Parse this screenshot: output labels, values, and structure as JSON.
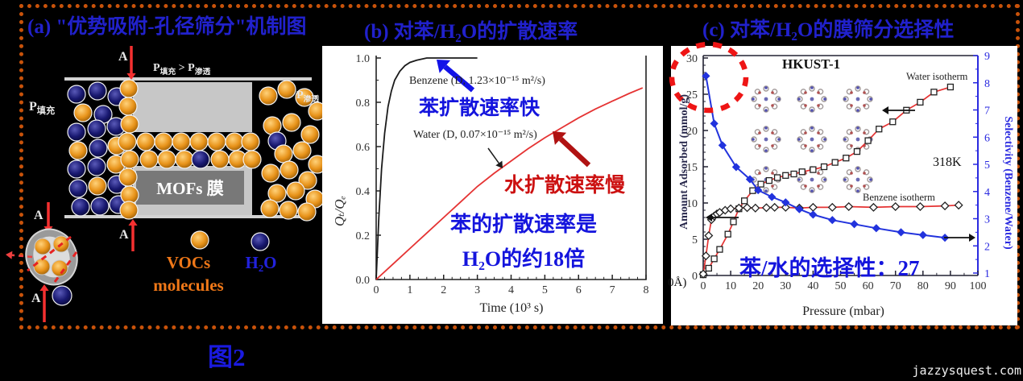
{
  "page": {
    "background": "#000000",
    "border_color": "#c8520a",
    "figure_label": "图2",
    "watermark": "jazzysquest.com"
  },
  "panel_a": {
    "title": "(a) \"优势吸附-孔径筛分\"机制图",
    "labels": {
      "p_feed_base": "P",
      "p_feed_sub": "填充",
      "p_compare_base1": "P",
      "p_compare_sub1": "填充",
      "p_compare_gt": " > ",
      "p_compare_base2": "P",
      "p_compare_sub2": "渗透",
      "p_perm_base": "P",
      "p_perm_sub": "渗透",
      "membrane_label": "MOFs 膜",
      "section_top": "A",
      "section_bottom": "A",
      "section_inset_top": "A",
      "section_inset_bottom": "A"
    },
    "legend": {
      "vocs_line1": "VOCs",
      "vocs_line2": "molecules",
      "water_label": "H₂O",
      "vocs_color": "#f07818",
      "water_color": "#2222dd"
    },
    "molecule_colors": {
      "vocs": "#e8931a",
      "water": "#181870"
    },
    "molecules": [
      [
        95,
        117,
        "n"
      ],
      [
        121,
        113,
        "n"
      ],
      [
        145,
        120,
        "n"
      ],
      [
        103,
        140,
        "o"
      ],
      [
        128,
        142,
        "n"
      ],
      [
        95,
        164,
        "n"
      ],
      [
        120,
        160,
        "n"
      ],
      [
        144,
        157,
        "n"
      ],
      [
        97,
        187,
        "o"
      ],
      [
        122,
        184,
        "n"
      ],
      [
        145,
        181,
        "o"
      ],
      [
        95,
        210,
        "n"
      ],
      [
        120,
        207,
        "n"
      ],
      [
        144,
        204,
        "o"
      ],
      [
        97,
        234,
        "n"
      ],
      [
        121,
        231,
        "o"
      ],
      [
        145,
        229,
        "n"
      ],
      [
        100,
        257,
        "n"
      ],
      [
        124,
        256,
        "n"
      ],
      [
        147,
        254,
        "n"
      ],
      [
        160,
        110,
        "o"
      ],
      [
        159,
        132,
        "o"
      ],
      [
        161,
        154,
        "o"
      ],
      [
        158,
        176,
        "o"
      ],
      [
        161,
        198,
        "o"
      ],
      [
        159,
        220,
        "o"
      ],
      [
        161,
        242,
        "o"
      ],
      [
        160,
        261,
        "o"
      ],
      [
        181,
        176,
        "o"
      ],
      [
        203,
        176,
        "o"
      ],
      [
        225,
        176,
        "o"
      ],
      [
        247,
        176,
        "o"
      ],
      [
        269,
        176,
        "o"
      ],
      [
        291,
        176,
        "o"
      ],
      [
        311,
        176,
        "o"
      ],
      [
        185,
        198,
        "o"
      ],
      [
        207,
        198,
        "o"
      ],
      [
        229,
        198,
        "o"
      ],
      [
        249,
        198,
        "n"
      ],
      [
        273,
        198,
        "o"
      ],
      [
        295,
        198,
        "o"
      ],
      [
        313,
        198,
        "o"
      ],
      [
        333,
        119,
        "o"
      ],
      [
        356,
        111,
        "o"
      ],
      [
        378,
        121,
        "o"
      ],
      [
        394,
        138,
        "o"
      ],
      [
        338,
        156,
        "o"
      ],
      [
        362,
        152,
        "o"
      ],
      [
        385,
        167,
        "o"
      ],
      [
        344,
        175,
        "n"
      ],
      [
        352,
        191,
        "o"
      ],
      [
        375,
        187,
        "o"
      ],
      [
        394,
        204,
        "o"
      ],
      [
        336,
        215,
        "o"
      ],
      [
        359,
        211,
        "o"
      ],
      [
        382,
        224,
        "o"
      ],
      [
        344,
        240,
        "o"
      ],
      [
        367,
        237,
        "o"
      ],
      [
        391,
        247,
        "o"
      ],
      [
        335,
        259,
        "o"
      ],
      [
        358,
        261,
        "o"
      ],
      [
        381,
        263,
        "o"
      ]
    ]
  },
  "panel_b_title": "(b) 对苯/H₂O的扩散速率",
  "panel_c_title": "(c) 对苯/H₂O的膜筛分选择性",
  "chart_data": [
    {
      "id": "benzene-water-diffusion",
      "type": "line",
      "xlabel": "Time (10³ s)",
      "ylabel": "Qₜ/Qₑ",
      "xlim": [
        0,
        8
      ],
      "ylim": [
        0,
        1.05
      ],
      "xticks": [
        "0",
        "1",
        "2",
        "3",
        "4",
        "5",
        "6",
        "7",
        "8"
      ],
      "yticks": [
        "0.0",
        "0.2",
        "0.4",
        "0.6",
        "0.8",
        "1.0"
      ],
      "grid": false,
      "legend_position": "none",
      "series": [
        {
          "name": "Benzene",
          "color": "#1b1b1b",
          "x": [
            0,
            0.08,
            0.16,
            0.25,
            0.35,
            0.45,
            0.55,
            0.7,
            0.85,
            1.0,
            1.2,
            1.5,
            1.8,
            2.2,
            2.6,
            3.0
          ],
          "y": [
            0,
            0.28,
            0.5,
            0.66,
            0.78,
            0.85,
            0.9,
            0.94,
            0.965,
            0.98,
            0.99,
            1.0,
            1.0,
            1.0,
            1.0,
            1.0
          ]
        },
        {
          "name": "Water",
          "color": "#e53333",
          "x": [
            0,
            0.5,
            1,
            1.5,
            2,
            2.5,
            3,
            3.5,
            4,
            4.5,
            5,
            5.5,
            6,
            6.5,
            7,
            7.5,
            7.9
          ],
          "y": [
            0,
            0.07,
            0.14,
            0.21,
            0.28,
            0.35,
            0.42,
            0.48,
            0.535,
            0.59,
            0.64,
            0.685,
            0.73,
            0.77,
            0.805,
            0.84,
            0.865
          ]
        }
      ],
      "annotations": {
        "benzene_label": "Benzene (D, 1.23×10⁻¹⁵ m²/s)",
        "benzene_fast": "苯扩散速率快",
        "water_label": "Water (D, 0.07×10⁻¹⁵ m²/s)",
        "water_slow": "水扩散速率慢",
        "ratio_line1": "苯的扩散速率是",
        "ratio_line2": "H₂O的约18倍"
      }
    },
    {
      "id": "hkust1-isotherms-selectivity",
      "type": "line",
      "xlabel": "Pressure (mbar)",
      "ylabel_left": "Amount Adsorbed (mmol/g)",
      "ylabel_right": "Selectivity (Benzene/Water)",
      "xlim": [
        0,
        100
      ],
      "ylim_left": [
        0,
        30
      ],
      "ylim_right": [
        1,
        9
      ],
      "xticks": [
        "0",
        "10",
        "20",
        "30",
        "40",
        "50",
        "60",
        "70",
        "80",
        "90",
        "100"
      ],
      "yticks_left": [
        "0",
        "5",
        "10",
        "15",
        "20",
        "25",
        "30"
      ],
      "yticks_right": [
        "1",
        "2",
        "3",
        "4",
        "5",
        "6",
        "7",
        "8",
        "9"
      ],
      "grid": false,
      "series": [
        {
          "name": "Water isotherm",
          "axis": "left",
          "color": "#e53333",
          "marker": "square-open",
          "x": [
            0,
            2,
            4,
            6,
            9,
            11,
            13,
            15,
            18,
            21,
            24,
            27,
            30,
            33,
            36,
            40,
            44,
            48,
            52,
            56,
            60,
            64,
            69,
            74,
            79,
            84,
            90
          ],
          "y": [
            0.1,
            1.0,
            2.3,
            3.6,
            5.7,
            7.4,
            9.2,
            10.3,
            11.7,
            12.6,
            13.1,
            13.5,
            13.8,
            14.0,
            14.3,
            14.6,
            15.0,
            15.6,
            16.2,
            17.1,
            18.6,
            20.2,
            21.2,
            22.8,
            23.9,
            25.3,
            26.0
          ]
        },
        {
          "name": "Benzene isotherm",
          "axis": "left",
          "color": "#e53333",
          "marker": "diamond-open",
          "x": [
            0,
            1,
            2,
            3,
            4,
            5,
            6,
            8,
            10,
            13,
            16,
            19,
            23,
            26,
            30,
            35,
            40,
            47,
            53,
            62,
            70,
            79,
            88,
            93
          ],
          "y": [
            0.2,
            2.7,
            5.5,
            7.7,
            8.2,
            8.5,
            8.7,
            9.0,
            9.2,
            9.3,
            9.35,
            9.3,
            9.35,
            9.4,
            9.4,
            9.3,
            9.4,
            9.4,
            9.5,
            9.4,
            9.5,
            9.5,
            9.6,
            9.7
          ]
        },
        {
          "name": "Selectivity",
          "axis": "right",
          "color": "#2233dd",
          "marker": "diamond-filled",
          "x": [
            1,
            4,
            7,
            12,
            17,
            20,
            25,
            30,
            35,
            40,
            47,
            55,
            63,
            72,
            80,
            88
          ],
          "y": [
            8.25,
            6.5,
            5.7,
            4.9,
            4.45,
            4.05,
            3.8,
            3.6,
            3.35,
            3.15,
            2.95,
            2.8,
            2.65,
            2.5,
            2.4,
            2.3
          ]
        }
      ],
      "labels": {
        "material": "HKUST-1",
        "water_curve": "Water isotherm",
        "benzene_curve": "Benzene isotherm",
        "temperature": "318K",
        "axis_fragment": "0Å)"
      },
      "annotation_selectivity": "苯/水的选择性：27"
    }
  ]
}
